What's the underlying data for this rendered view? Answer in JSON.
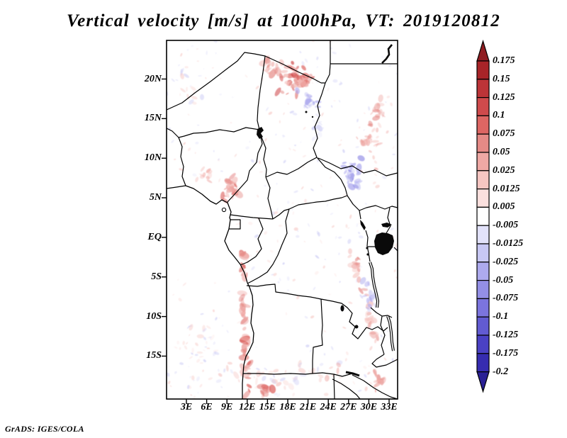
{
  "figure": {
    "title": "Vertical velocity [m/s] at 1000hPa, VT: 2019120812",
    "attribution": "GrADS: IGES/COLA"
  },
  "chart_data": {
    "type": "heatmap",
    "title": "Vertical velocity [m/s] at 1000hPa, VT: 2019120812",
    "variable": "Vertical velocity",
    "units": "m/s",
    "level": "1000hPa",
    "valid_time": "2019120812",
    "x_ticks": [
      "3E",
      "6E",
      "9E",
      "12E",
      "15E",
      "18E",
      "21E",
      "24E",
      "27E",
      "30E",
      "33E"
    ],
    "y_ticks": [
      "20N",
      "15N",
      "10N",
      "5N",
      "EQ",
      "5S",
      "10S",
      "15S"
    ],
    "axis_range_estimate": {
      "lon": [
        0,
        35
      ],
      "lat": [
        -20.5,
        25
      ]
    },
    "grid": false,
    "colorbar": {
      "orientation": "vertical",
      "position": "right",
      "extend": "both",
      "levels": [
        "0.175",
        "0.15",
        "0.125",
        "0.1",
        "0.075",
        "0.05",
        "0.025",
        "0.0125",
        "0.005",
        "-0.005",
        "-0.0125",
        "-0.025",
        "-0.05",
        "-0.075",
        "-0.1",
        "-0.125",
        "-0.175",
        "-0.2"
      ],
      "colors": [
        "#8f1d21",
        "#a82428",
        "#bc3438",
        "#cf4a4c",
        "#dd6663",
        "#e58a86",
        "#efa8a4",
        "#f6c6c2",
        "#fbe0de",
        "#ffffff",
        "#e2e2fa",
        "#c8c8f4",
        "#adaaee",
        "#938fe6",
        "#7b74de",
        "#625bd2",
        "#4a41c4",
        "#362cb0",
        "#2a2095"
      ]
    },
    "field_summary": "Mostly near-zero (white) field with weak speckled positive (red) and negative (blue) cells over Central Africa; stronger red maxima over Tibesti/central Chad, Cameroon highlands, the Angolan coast and the East African rift; scattered blue minima east of Chad and along the southern rift.",
    "map_overlay": "African country borders, coastline and lakes (Chad, Victoria, Kyoga, Albert, Tanganyika, Mweru, Malawi, Kariba) drawn in black",
    "attribution": "GrADS: IGES/COLA"
  }
}
